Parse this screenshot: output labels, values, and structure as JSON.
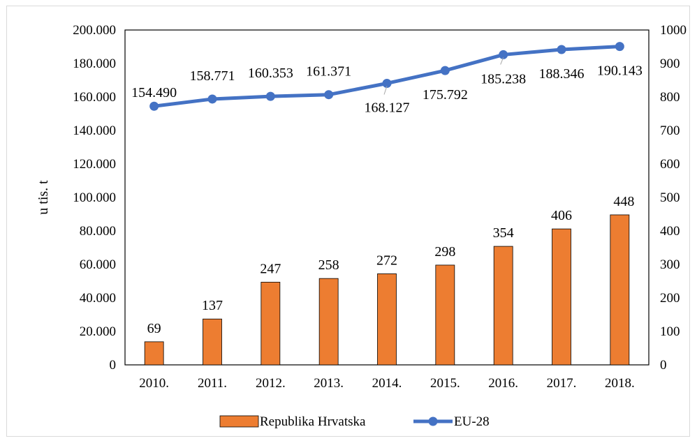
{
  "chart_data": {
    "type": "bar",
    "categories": [
      "2010.",
      "2011.",
      "2012.",
      "2013.",
      "2014.",
      "2015.",
      "2016.",
      "2017.",
      "2018."
    ],
    "ylabel": "u tis. t",
    "y_left": {
      "range": [
        0,
        200000
      ],
      "ticks": [
        0,
        20000,
        40000,
        60000,
        80000,
        100000,
        120000,
        140000,
        160000,
        180000,
        200000
      ],
      "tick_labels": [
        "0",
        "20.000",
        "40.000",
        "60.000",
        "80.000",
        "100.000",
        "120.000",
        "140.000",
        "160.000",
        "180.000",
        "200.000"
      ]
    },
    "y_right": {
      "range": [
        0,
        1000
      ],
      "ticks": [
        0,
        100,
        200,
        300,
        400,
        500,
        600,
        700,
        800,
        900,
        1000
      ],
      "tick_labels": [
        "0",
        "100",
        "200",
        "300",
        "400",
        "500",
        "600",
        "700",
        "800",
        "900",
        "1000"
      ]
    },
    "series": [
      {
        "name": "Republika Hrvatska",
        "type": "bar",
        "axis": "right",
        "color": "#ed7d31",
        "values": [
          69,
          137,
          247,
          258,
          272,
          298,
          354,
          406,
          448
        ],
        "labels": [
          "69",
          "137",
          "247",
          "258",
          "272",
          "298",
          "354",
          "406",
          "448"
        ]
      },
      {
        "name": "EU-28",
        "type": "line",
        "axis": "left",
        "color": "#4472c4",
        "values": [
          154490,
          158771,
          160353,
          161371,
          168127,
          175792,
          185238,
          188346,
          190143
        ],
        "labels": [
          "154.490",
          "158.771",
          "160.353",
          "161.371",
          "168.127",
          "175.792",
          "185.238",
          "188.346",
          "190.143"
        ]
      }
    ],
    "grid": false,
    "legend_position": "bottom"
  }
}
